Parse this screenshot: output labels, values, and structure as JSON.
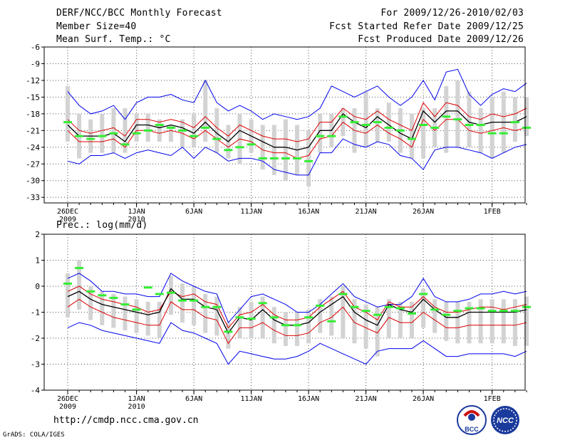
{
  "header": {
    "title": "DERF/NCC/BCC Monthly Forecast",
    "member_size": "Member Size=40",
    "variable": "Mean Surf. Temp.: °C",
    "period": "For 2009/12/26-2010/02/03",
    "started": "Fcst Started Refer Date 2009/12/25",
    "produced": "Fcst Produced Date 2009/12/26"
  },
  "footer": {
    "url": "http://cmdp.ncc.cma.gov.cn",
    "credit": "GrADS: COLA/IGES",
    "logo_bcc": "BCC",
    "logo_ncc": "NCC"
  },
  "colors": {
    "envelope": "#0000ee",
    "spread": "#dd0000",
    "mean": "#000000",
    "box": "#d3d3d3",
    "marker": "#33ee33"
  },
  "chart_data": [
    {
      "type": "box-ensemble",
      "title": "Mean Surf. Temp.: °C",
      "ylim": [
        -34,
        -6
      ],
      "yticks": [
        -6,
        -9,
        -12,
        -15,
        -18,
        -21,
        -24,
        -27,
        -30,
        -33
      ],
      "xtick_labels": [
        {
          "day": 0,
          "label": "26DEC",
          "sub": "2009"
        },
        {
          "day": 6,
          "label": "1JAN",
          "sub": "2010"
        },
        {
          "day": 11,
          "label": "6JAN"
        },
        {
          "day": 16,
          "label": "11JAN"
        },
        {
          "day": 21,
          "label": "16JAN"
        },
        {
          "day": 26,
          "label": "21JAN"
        },
        {
          "day": 31,
          "label": "26JAN"
        },
        {
          "day": 37,
          "label": "1FEB"
        }
      ],
      "series": [
        {
          "name": "max",
          "values": [
            -14,
            -16.5,
            -18,
            -17.5,
            -16.5,
            -19,
            -16,
            -15,
            -15,
            -14.5,
            -15.5,
            -16,
            -12,
            -16,
            -17.5,
            -16.5,
            -17.5,
            -19,
            -18,
            -18.5,
            -19,
            -18.5,
            -17,
            -13,
            -14,
            -15,
            -14,
            -13,
            -15,
            -16.5,
            -15,
            -12,
            -15.5,
            -10.5,
            -10,
            -14.5,
            -16.5,
            -14.5,
            -13.5,
            -14,
            -12.5
          ]
        },
        {
          "name": "upper",
          "values": [
            -19,
            -21,
            -21.5,
            -21,
            -20.5,
            -22,
            -19,
            -19,
            -19.5,
            -19,
            -19.5,
            -20.5,
            -18.5,
            -20.5,
            -22,
            -20,
            -21,
            -22,
            -22.5,
            -22.5,
            -23,
            -22.5,
            -19.5,
            -19.5,
            -17,
            -18.5,
            -19,
            -17.5,
            -19,
            -20,
            -21,
            -16,
            -18.5,
            -16,
            -16.5,
            -18.5,
            -19,
            -18,
            -18.5,
            -18,
            -17
          ]
        },
        {
          "name": "mean",
          "values": [
            -20,
            -22,
            -22,
            -22,
            -21.5,
            -23,
            -20,
            -20,
            -20.5,
            -20,
            -20.5,
            -21.5,
            -19.5,
            -21.5,
            -23,
            -21,
            -22,
            -23,
            -24,
            -24,
            -24.5,
            -24,
            -21,
            -21,
            -18,
            -19.5,
            -20.5,
            -18.5,
            -20,
            -21.5,
            -22.5,
            -17.5,
            -19.5,
            -17.5,
            -17.5,
            -19.5,
            -20,
            -19.5,
            -19.5,
            -19.5,
            -18.5
          ]
        },
        {
          "name": "lower",
          "values": [
            -21,
            -23,
            -23,
            -23,
            -22.5,
            -24,
            -21,
            -21,
            -21.5,
            -21,
            -21.5,
            -22.5,
            -21,
            -22.5,
            -24,
            -22.5,
            -23,
            -24.5,
            -25,
            -25,
            -26,
            -25.5,
            -22.5,
            -22,
            -19.5,
            -21,
            -21.5,
            -20,
            -21.5,
            -22.5,
            -24,
            -19,
            -21,
            -19,
            -19,
            -21,
            -21.5,
            -21,
            -20.5,
            -21,
            -20.5
          ]
        },
        {
          "name": "min",
          "values": [
            -26.5,
            -27,
            -25.5,
            -25.5,
            -25,
            -26,
            -25,
            -24.5,
            -25,
            -25.5,
            -24,
            -26,
            -24,
            -25,
            -26.5,
            -26,
            -26,
            -26.5,
            -28,
            -28.5,
            -29,
            -29,
            -25,
            -25,
            -22.5,
            -23.5,
            -24,
            -23,
            -23.5,
            -25.5,
            -26,
            -28,
            -24.5,
            -24,
            -24,
            -24.5,
            -25,
            -26,
            -25,
            -24,
            -23.5
          ]
        },
        {
          "name": "observed",
          "values": [
            -19.5,
            -22,
            -22.5,
            -22,
            -21.5,
            -23.5,
            -21.5,
            -21,
            -20,
            -20.5,
            -21,
            -22,
            -20.5,
            -22.5,
            -24.5,
            -24,
            -23.5,
            -26,
            -26,
            -26,
            -26,
            -26.5,
            -22,
            -22,
            -18.5,
            -19.5,
            -20,
            -19.5,
            -20.5,
            -21,
            -22.5,
            -20,
            -20.5,
            -18.5,
            -19,
            -20,
            -20,
            -21.5,
            -21.5,
            -19.5,
            -20.5
          ]
        },
        {
          "name": "box_top",
          "values": [
            -13,
            -18,
            -19,
            -18,
            -17,
            -17,
            -18,
            -18,
            -19,
            -20,
            -19,
            -18,
            -12,
            -17,
            -20,
            -18,
            -19,
            -20,
            -20,
            -19,
            -20,
            -21,
            -18,
            -18,
            -17,
            -17,
            -14,
            -17,
            -16,
            -17,
            -18,
            -17,
            -17,
            -13,
            -12,
            -14,
            -17,
            -15,
            -14,
            -15,
            -15
          ]
        },
        {
          "name": "box_bottom",
          "values": [
            -23,
            -26,
            -25,
            -25,
            -25,
            -25,
            -23,
            -23,
            -23,
            -23,
            -24,
            -24,
            -23,
            -25,
            -26,
            -27,
            -25,
            -28,
            -29,
            -30,
            -29,
            -31,
            -25,
            -24,
            -22,
            -25,
            -24,
            -23,
            -23,
            -25,
            -26,
            -26,
            -24,
            -25,
            -24,
            -24,
            -25,
            -26,
            -25,
            -23,
            -22
          ]
        }
      ]
    },
    {
      "type": "box-ensemble",
      "title": "Prec.: log(mm/d)",
      "ylim": [
        -4,
        2
      ],
      "yticks": [
        2,
        1,
        0,
        -1,
        -2,
        -3,
        -4
      ],
      "xtick_labels": [
        {
          "day": 0,
          "label": "26DEC",
          "sub": "2009"
        },
        {
          "day": 6,
          "label": "1JAN",
          "sub": "2010"
        },
        {
          "day": 11,
          "label": "6JAN"
        },
        {
          "day": 16,
          "label": "11JAN"
        },
        {
          "day": 21,
          "label": "16JAN"
        },
        {
          "day": 26,
          "label": "21JAN"
        },
        {
          "day": 31,
          "label": "26JAN"
        },
        {
          "day": 37,
          "label": "1FEB"
        }
      ],
      "series": [
        {
          "name": "max",
          "values": [
            0.3,
            0.5,
            0.2,
            -0.2,
            -0.2,
            -0.3,
            -0.3,
            -0.4,
            -0.4,
            0.5,
            0.2,
            0,
            -0.2,
            -0.3,
            -1.4,
            -0.9,
            -0.4,
            -0.3,
            -0.5,
            -0.7,
            -1,
            -1,
            -0.7,
            -0.3,
            0.1,
            -0.4,
            -0.6,
            -0.8,
            -0.7,
            -0.7,
            -0.4,
            0.3,
            -0.4,
            -0.6,
            -0.6,
            -0.5,
            -0.3,
            -0.3,
            -0.2,
            -0.3,
            -0.2
          ]
        },
        {
          "name": "upper",
          "values": [
            -0.2,
            0,
            -0.3,
            -0.5,
            -0.6,
            -0.7,
            -0.8,
            -1,
            -0.9,
            -0.2,
            -0.4,
            -0.3,
            -0.6,
            -0.7,
            -1.6,
            -1.1,
            -1,
            -0.7,
            -1.1,
            -1.3,
            -1.3,
            -1.2,
            -0.8,
            -0.5,
            -0.2,
            -0.8,
            -1,
            -1.3,
            -0.6,
            -0.8,
            -0.8,
            -0.4,
            -0.8,
            -1,
            -1,
            -0.9,
            -0.8,
            -0.8,
            -0.9,
            -0.8,
            -0.7
          ]
        },
        {
          "name": "mean",
          "values": [
            -0.4,
            -0.2,
            -0.5,
            -0.7,
            -0.8,
            -0.9,
            -1,
            -1.1,
            -1,
            -0.1,
            -0.5,
            -0.5,
            -0.8,
            -0.9,
            -1.8,
            -1.2,
            -1.3,
            -0.9,
            -1.3,
            -1.5,
            -1.5,
            -1.4,
            -1,
            -0.7,
            -0.4,
            -1,
            -1.3,
            -1.5,
            -0.7,
            -0.9,
            -1,
            -0.5,
            -0.9,
            -1.2,
            -1.2,
            -1,
            -1,
            -1,
            -1,
            -1,
            -0.9
          ]
        },
        {
          "name": "lower",
          "values": [
            -0.8,
            -0.5,
            -0.8,
            -1,
            -1.2,
            -1.3,
            -1.4,
            -1.5,
            -1.5,
            -0.6,
            -0.9,
            -0.9,
            -1.2,
            -1.3,
            -2.2,
            -1.6,
            -1.6,
            -1.4,
            -1.7,
            -1.9,
            -1.9,
            -1.8,
            -1.4,
            -1.2,
            -0.8,
            -1.4,
            -1.6,
            -1.8,
            -1.2,
            -1.4,
            -1.4,
            -1,
            -1.3,
            -1.6,
            -1.6,
            -1.5,
            -1.5,
            -1.5,
            -1.5,
            -1.5,
            -1.4
          ]
        },
        {
          "name": "min",
          "values": [
            -1.6,
            -1.4,
            -1.5,
            -1.7,
            -1.8,
            -1.9,
            -2,
            -2.1,
            -2.2,
            -1.4,
            -1.7,
            -1.8,
            -2,
            -2.2,
            -3,
            -2.5,
            -2.6,
            -2.7,
            -2.8,
            -2.8,
            -2.7,
            -2.5,
            -2.2,
            -2.4,
            -2.6,
            -2.8,
            -3,
            -2.5,
            -2.4,
            -2.4,
            -2.4,
            -2.1,
            -2.4,
            -2.7,
            -2.7,
            -2.6,
            -2.6,
            -2.6,
            -2.6,
            -2.7,
            -2.5
          ]
        },
        {
          "name": "observed",
          "values": [
            0.1,
            0.7,
            -0.2,
            -0.35,
            -0.45,
            -0.7,
            -0.9,
            -0.05,
            -0.3,
            -0.25,
            -0.55,
            -0.55,
            -0.8,
            -0.8,
            -1.75,
            -1.2,
            -1.25,
            -0.65,
            -1.2,
            -1.5,
            -1.5,
            -1.2,
            -0.75,
            -1.35,
            -0.3,
            -0.8,
            -0.95,
            -1.1,
            -0.8,
            -0.85,
            -1.05,
            -0.3,
            -0.9,
            -1.1,
            -0.95,
            -0.85,
            -0.85,
            -0.95,
            -0.95,
            -0.95,
            -0.8
          ]
        },
        {
          "name": "box_top",
          "values": [
            0.5,
            1,
            0,
            -0.2,
            -0.3,
            -0.4,
            -0.5,
            -0.6,
            -0.6,
            0.4,
            0.1,
            0,
            -0.3,
            -0.4,
            -1.4,
            -0.8,
            -0.6,
            -0.4,
            -0.8,
            -1,
            -1,
            -0.9,
            -0.5,
            -0.4,
            0,
            -0.5,
            -0.7,
            -0.8,
            -0.5,
            -0.6,
            -0.6,
            -0.1,
            -0.5,
            -0.6,
            -0.6,
            -0.6,
            -0.5,
            -0.5,
            -0.5,
            -0.5,
            -0.4
          ]
        },
        {
          "name": "box_bottom",
          "values": [
            -1.2,
            -0.9,
            -1.3,
            -1.5,
            -1.6,
            -1.7,
            -1.8,
            -1.9,
            -2,
            -1.1,
            -1.4,
            -1.5,
            -1.8,
            -1.9,
            -2.4,
            -2,
            -2,
            -2,
            -2.2,
            -2.3,
            -2.3,
            -2.2,
            -1.8,
            -1.9,
            -2,
            -2.2,
            -2.4,
            -2.7,
            -2,
            -2,
            -2,
            -1.6,
            -1.8,
            -2.1,
            -2.2,
            -2.2,
            -2.2,
            -2.2,
            -2.2,
            -2.3,
            -2.3
          ]
        }
      ]
    }
  ]
}
